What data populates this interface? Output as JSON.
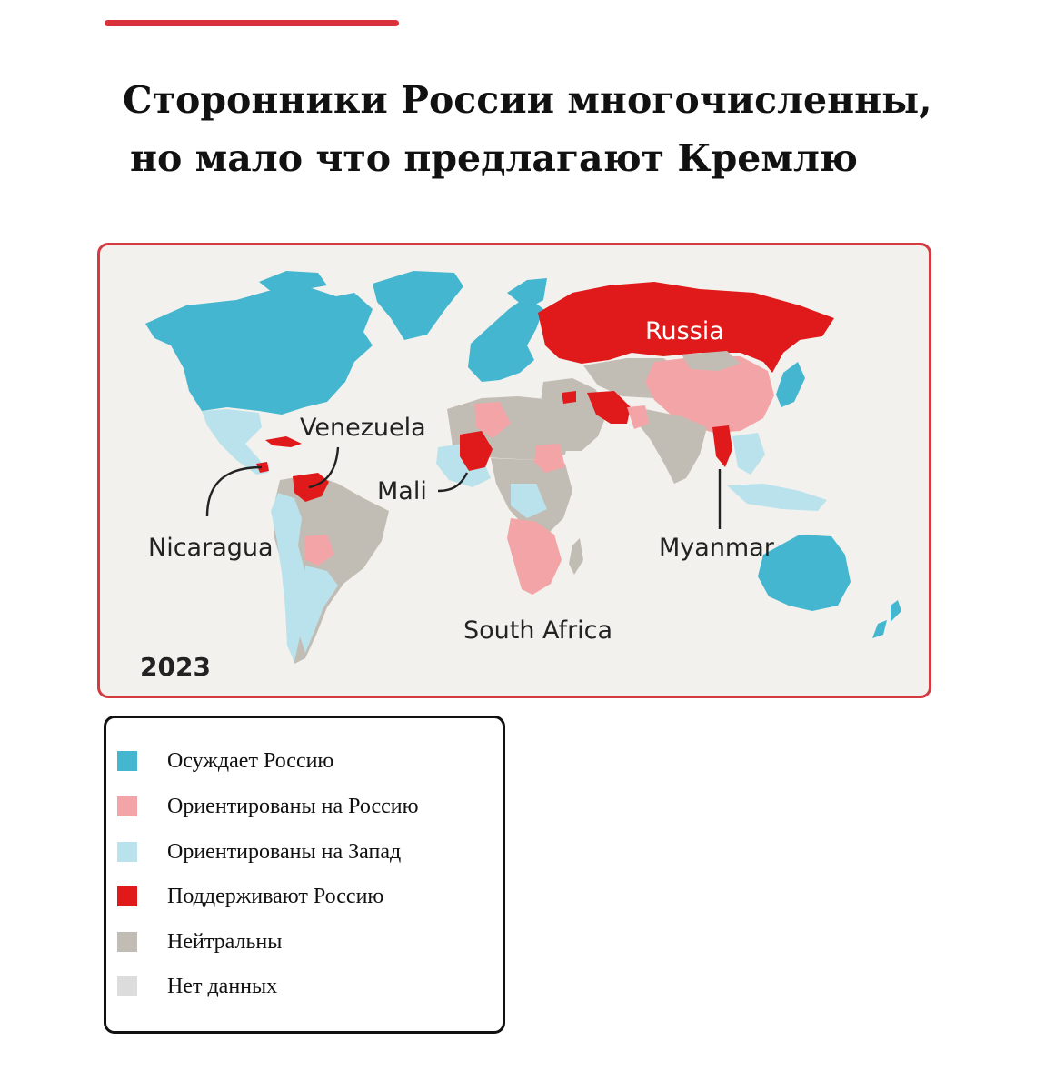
{
  "title": {
    "line1": "Сторонники России многочисленны,",
    "line2": "но мало что предлагают Кремлю"
  },
  "colors": {
    "accent": "#d9323a",
    "condemns": "#44b6cf",
    "leans_russia": "#f3a4a7",
    "leans_west": "#b9e2ec",
    "supports": "#e01a1a",
    "neutral": "#c2bdb4",
    "no_data": "#dcdcdc"
  },
  "map": {
    "year": "2023",
    "labels": {
      "russia": "Russia",
      "venezuela": "Venezuela",
      "mali": "Mali",
      "nicaragua": "Nicaragua",
      "myanmar": "Myanmar",
      "south_africa": "South Africa"
    }
  },
  "legend": {
    "items": [
      {
        "label": "Осуждает Россию",
        "color": "#44b6cf"
      },
      {
        "label": "Ориентированы на Россию",
        "color": "#f3a4a7"
      },
      {
        "label": "Ориентированы на Запад",
        "color": "#b9e2ec"
      },
      {
        "label": "Поддерживают Россию",
        "color": "#e01a1a"
      },
      {
        "label": "Нейтральны",
        "color": "#c2bdb4"
      },
      {
        "label": "Нет данных",
        "color": "#dcdcdc"
      }
    ]
  }
}
